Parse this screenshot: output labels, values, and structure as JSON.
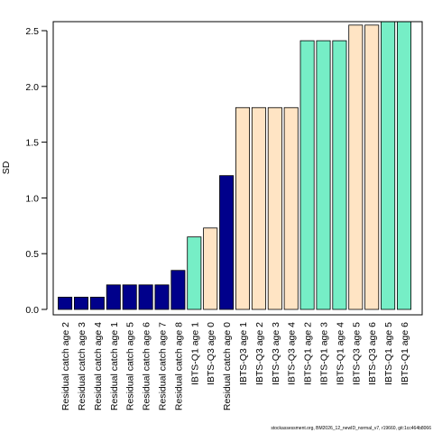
{
  "chart_data": {
    "type": "bar",
    "title": "",
    "xlabel": "",
    "ylabel": "SD",
    "ylim": [
      0,
      2.6
    ],
    "yticks": [
      0.0,
      0.5,
      1.0,
      1.5,
      2.0,
      2.5
    ],
    "ytick_labels": [
      "0.0",
      "0.5",
      "1.0",
      "1.5",
      "2.0",
      "2.5"
    ],
    "grid": false,
    "categories": [
      "Residual catch age 2",
      "Residual catch age 3",
      "Residual catch age 4",
      "Residual catch age 1",
      "Residual catch age 5",
      "Residual catch age 6",
      "Residual catch age 7",
      "Residual catch age 8",
      "IBTS-Q1 age 1",
      "IBTS-Q3 age 0",
      "Residual catch age 0",
      "IBTS-Q3 age 1",
      "IBTS-Q3 age 2",
      "IBTS-Q3 age 3",
      "IBTS-Q3 age 4",
      "IBTS-Q1 age 2",
      "IBTS-Q1 age 3",
      "IBTS-Q1 age 4",
      "IBTS-Q3 age 5",
      "IBTS-Q3 age 6",
      "IBTS-Q1 age 5",
      "IBTS-Q1 age 6"
    ],
    "values": [
      0.11,
      0.11,
      0.11,
      0.22,
      0.22,
      0.22,
      0.22,
      0.35,
      0.65,
      0.73,
      1.2,
      1.81,
      1.81,
      1.81,
      1.81,
      2.41,
      2.41,
      2.41,
      2.55,
      2.55,
      2.58,
      2.58
    ],
    "bar_colors": [
      "#00008B",
      "#00008B",
      "#00008B",
      "#00008B",
      "#00008B",
      "#00008B",
      "#00008B",
      "#00008B",
      "#76EEC6",
      "#FFE4C4",
      "#00008B",
      "#FFE4C4",
      "#FFE4C4",
      "#FFE4C4",
      "#FFE4C4",
      "#76EEC6",
      "#76EEC6",
      "#76EEC6",
      "#FFE4C4",
      "#FFE4C4",
      "#76EEC6",
      "#76EEC6"
    ]
  },
  "footer": "stockassessment.org, BM2026_12_newID_normal_v7, r19660, git:1cc464b8066"
}
